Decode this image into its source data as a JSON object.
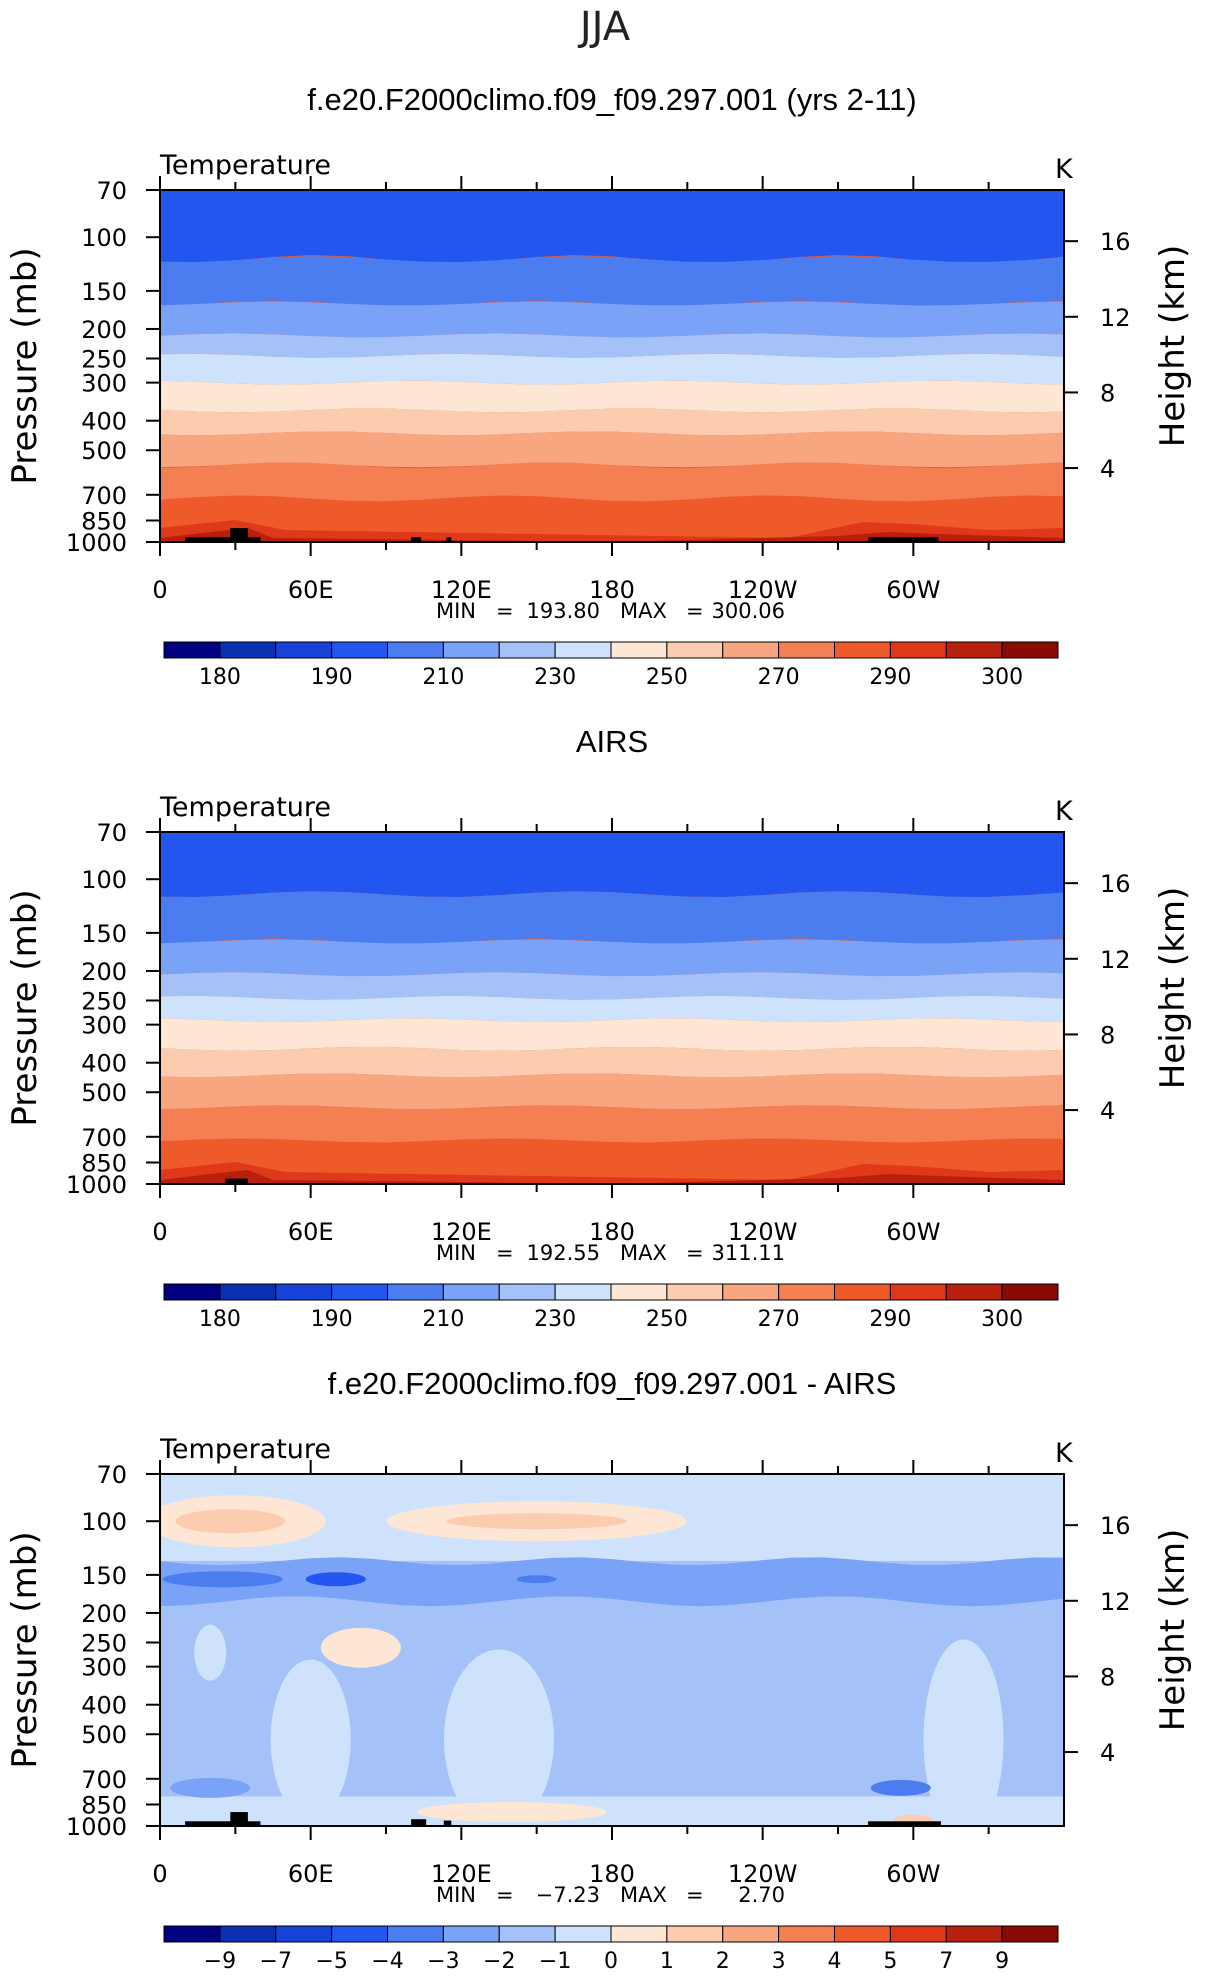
{
  "figure": {
    "season": "JJA"
  },
  "chart_data": [
    {
      "type": "heatmap",
      "title": "f.e20.F2000climo.f09_f09.297.001 (yrs 2-11)",
      "subtitle_left": "Temperature",
      "subtitle_right": "K",
      "ylabel": "Pressure (mb)",
      "ylabel_right": "Height (km)",
      "y_ticks": [
        "70",
        "100",
        "150",
        "200",
        "250",
        "300",
        "400",
        "500",
        "700",
        "850",
        "1000"
      ],
      "y_tick_values": [
        70,
        100,
        150,
        200,
        250,
        300,
        400,
        500,
        700,
        850,
        1000
      ],
      "y_right_ticks": [
        "16",
        "12",
        "8",
        "4"
      ],
      "y_right_tick_values": [
        16,
        12,
        8,
        4
      ],
      "x_ticks": [
        "0",
        "60E",
        "120E",
        "180",
        "120W",
        "60W"
      ],
      "x_tick_values": [
        0,
        60,
        120,
        180,
        240,
        300
      ],
      "xlim": [
        0,
        360
      ],
      "ylim": [
        1000,
        70
      ],
      "stats": {
        "min_label": "MIN",
        "min": "193.80",
        "max_label": "MAX",
        "max": "300.06",
        "eq": "="
      },
      "colorbar": {
        "labels": [
          "180",
          "190",
          "210",
          "230",
          "250",
          "270",
          "290",
          "300"
        ],
        "levels": [
          175,
          180,
          185,
          190,
          200,
          210,
          220,
          230,
          240,
          250,
          260,
          270,
          280,
          290,
          295,
          300
        ],
        "colors": [
          "#000080",
          "#0a2fb0",
          "#1642d8",
          "#2356ee",
          "#4b7cf0",
          "#7aa2f6",
          "#a4c2f8",
          "#cfe2fb",
          "#fde7d4",
          "#fcccb0",
          "#f8a680",
          "#f37f52",
          "#ef5a2a",
          "#e0391a",
          "#b8200e",
          "#8a0a06"
        ]
      }
    },
    {
      "type": "heatmap",
      "title": "AIRS",
      "subtitle_left": "Temperature",
      "subtitle_right": "K",
      "ylabel": "Pressure (mb)",
      "ylabel_right": "Height (km)",
      "y_ticks": [
        "70",
        "100",
        "150",
        "200",
        "250",
        "300",
        "400",
        "500",
        "700",
        "850",
        "1000"
      ],
      "y_tick_values": [
        70,
        100,
        150,
        200,
        250,
        300,
        400,
        500,
        700,
        850,
        1000
      ],
      "y_right_ticks": [
        "16",
        "12",
        "8",
        "4"
      ],
      "y_right_tick_values": [
        16,
        12,
        8,
        4
      ],
      "x_ticks": [
        "0",
        "60E",
        "120E",
        "180",
        "120W",
        "60W"
      ],
      "x_tick_values": [
        0,
        60,
        120,
        180,
        240,
        300
      ],
      "xlim": [
        0,
        360
      ],
      "ylim": [
        1000,
        70
      ],
      "stats": {
        "min_label": "MIN",
        "min": "192.55",
        "max_label": "MAX",
        "max": "311.11",
        "eq": "="
      },
      "colorbar": {
        "labels": [
          "180",
          "190",
          "210",
          "230",
          "250",
          "270",
          "290",
          "300"
        ],
        "levels": [
          175,
          180,
          185,
          190,
          200,
          210,
          220,
          230,
          240,
          250,
          260,
          270,
          280,
          290,
          295,
          300
        ],
        "colors": [
          "#000080",
          "#0a2fb0",
          "#1642d8",
          "#2356ee",
          "#4b7cf0",
          "#7aa2f6",
          "#a4c2f8",
          "#cfe2fb",
          "#fde7d4",
          "#fcccb0",
          "#f8a680",
          "#f37f52",
          "#ef5a2a",
          "#e0391a",
          "#b8200e",
          "#8a0a06"
        ]
      }
    },
    {
      "type": "heatmap",
      "title": "f.e20.F2000climo.f09_f09.297.001 - AIRS",
      "subtitle_left": "Temperature",
      "subtitle_right": "K",
      "ylabel": "Pressure (mb)",
      "ylabel_right": "Height (km)",
      "y_ticks": [
        "70",
        "100",
        "150",
        "200",
        "250",
        "300",
        "400",
        "500",
        "700",
        "850",
        "1000"
      ],
      "y_tick_values": [
        70,
        100,
        150,
        200,
        250,
        300,
        400,
        500,
        700,
        850,
        1000
      ],
      "y_right_ticks": [
        "16",
        "12",
        "8",
        "4"
      ],
      "y_right_tick_values": [
        16,
        12,
        8,
        4
      ],
      "x_ticks": [
        "0",
        "60E",
        "120E",
        "180",
        "120W",
        "60W"
      ],
      "x_tick_values": [
        0,
        60,
        120,
        180,
        240,
        300
      ],
      "xlim": [
        0,
        360
      ],
      "ylim": [
        1000,
        70
      ],
      "stats": {
        "min_label": "MIN",
        "min": "−7.23",
        "max_label": "MAX",
        "max": "2.70",
        "eq": "="
      },
      "colorbar": {
        "labels": [
          "−9",
          "−7",
          "−5",
          "−4",
          "−3",
          "−2",
          "−1",
          "0",
          "1",
          "2",
          "3",
          "4",
          "5",
          "7",
          "9"
        ],
        "levels": [
          -9,
          -7,
          -5,
          -4,
          -3,
          -2,
          -1,
          0,
          1,
          2,
          3,
          4,
          5,
          7,
          9
        ],
        "colors": [
          "#000080",
          "#0a2fb0",
          "#1642d8",
          "#2356ee",
          "#4b7cf0",
          "#7aa2f6",
          "#a4c2f8",
          "#cfe2fb",
          "#fde7d4",
          "#fcccb0",
          "#f8a680",
          "#f37f52",
          "#ef5a2a",
          "#e0391a",
          "#b8200e",
          "#8a0a06"
        ]
      }
    }
  ]
}
